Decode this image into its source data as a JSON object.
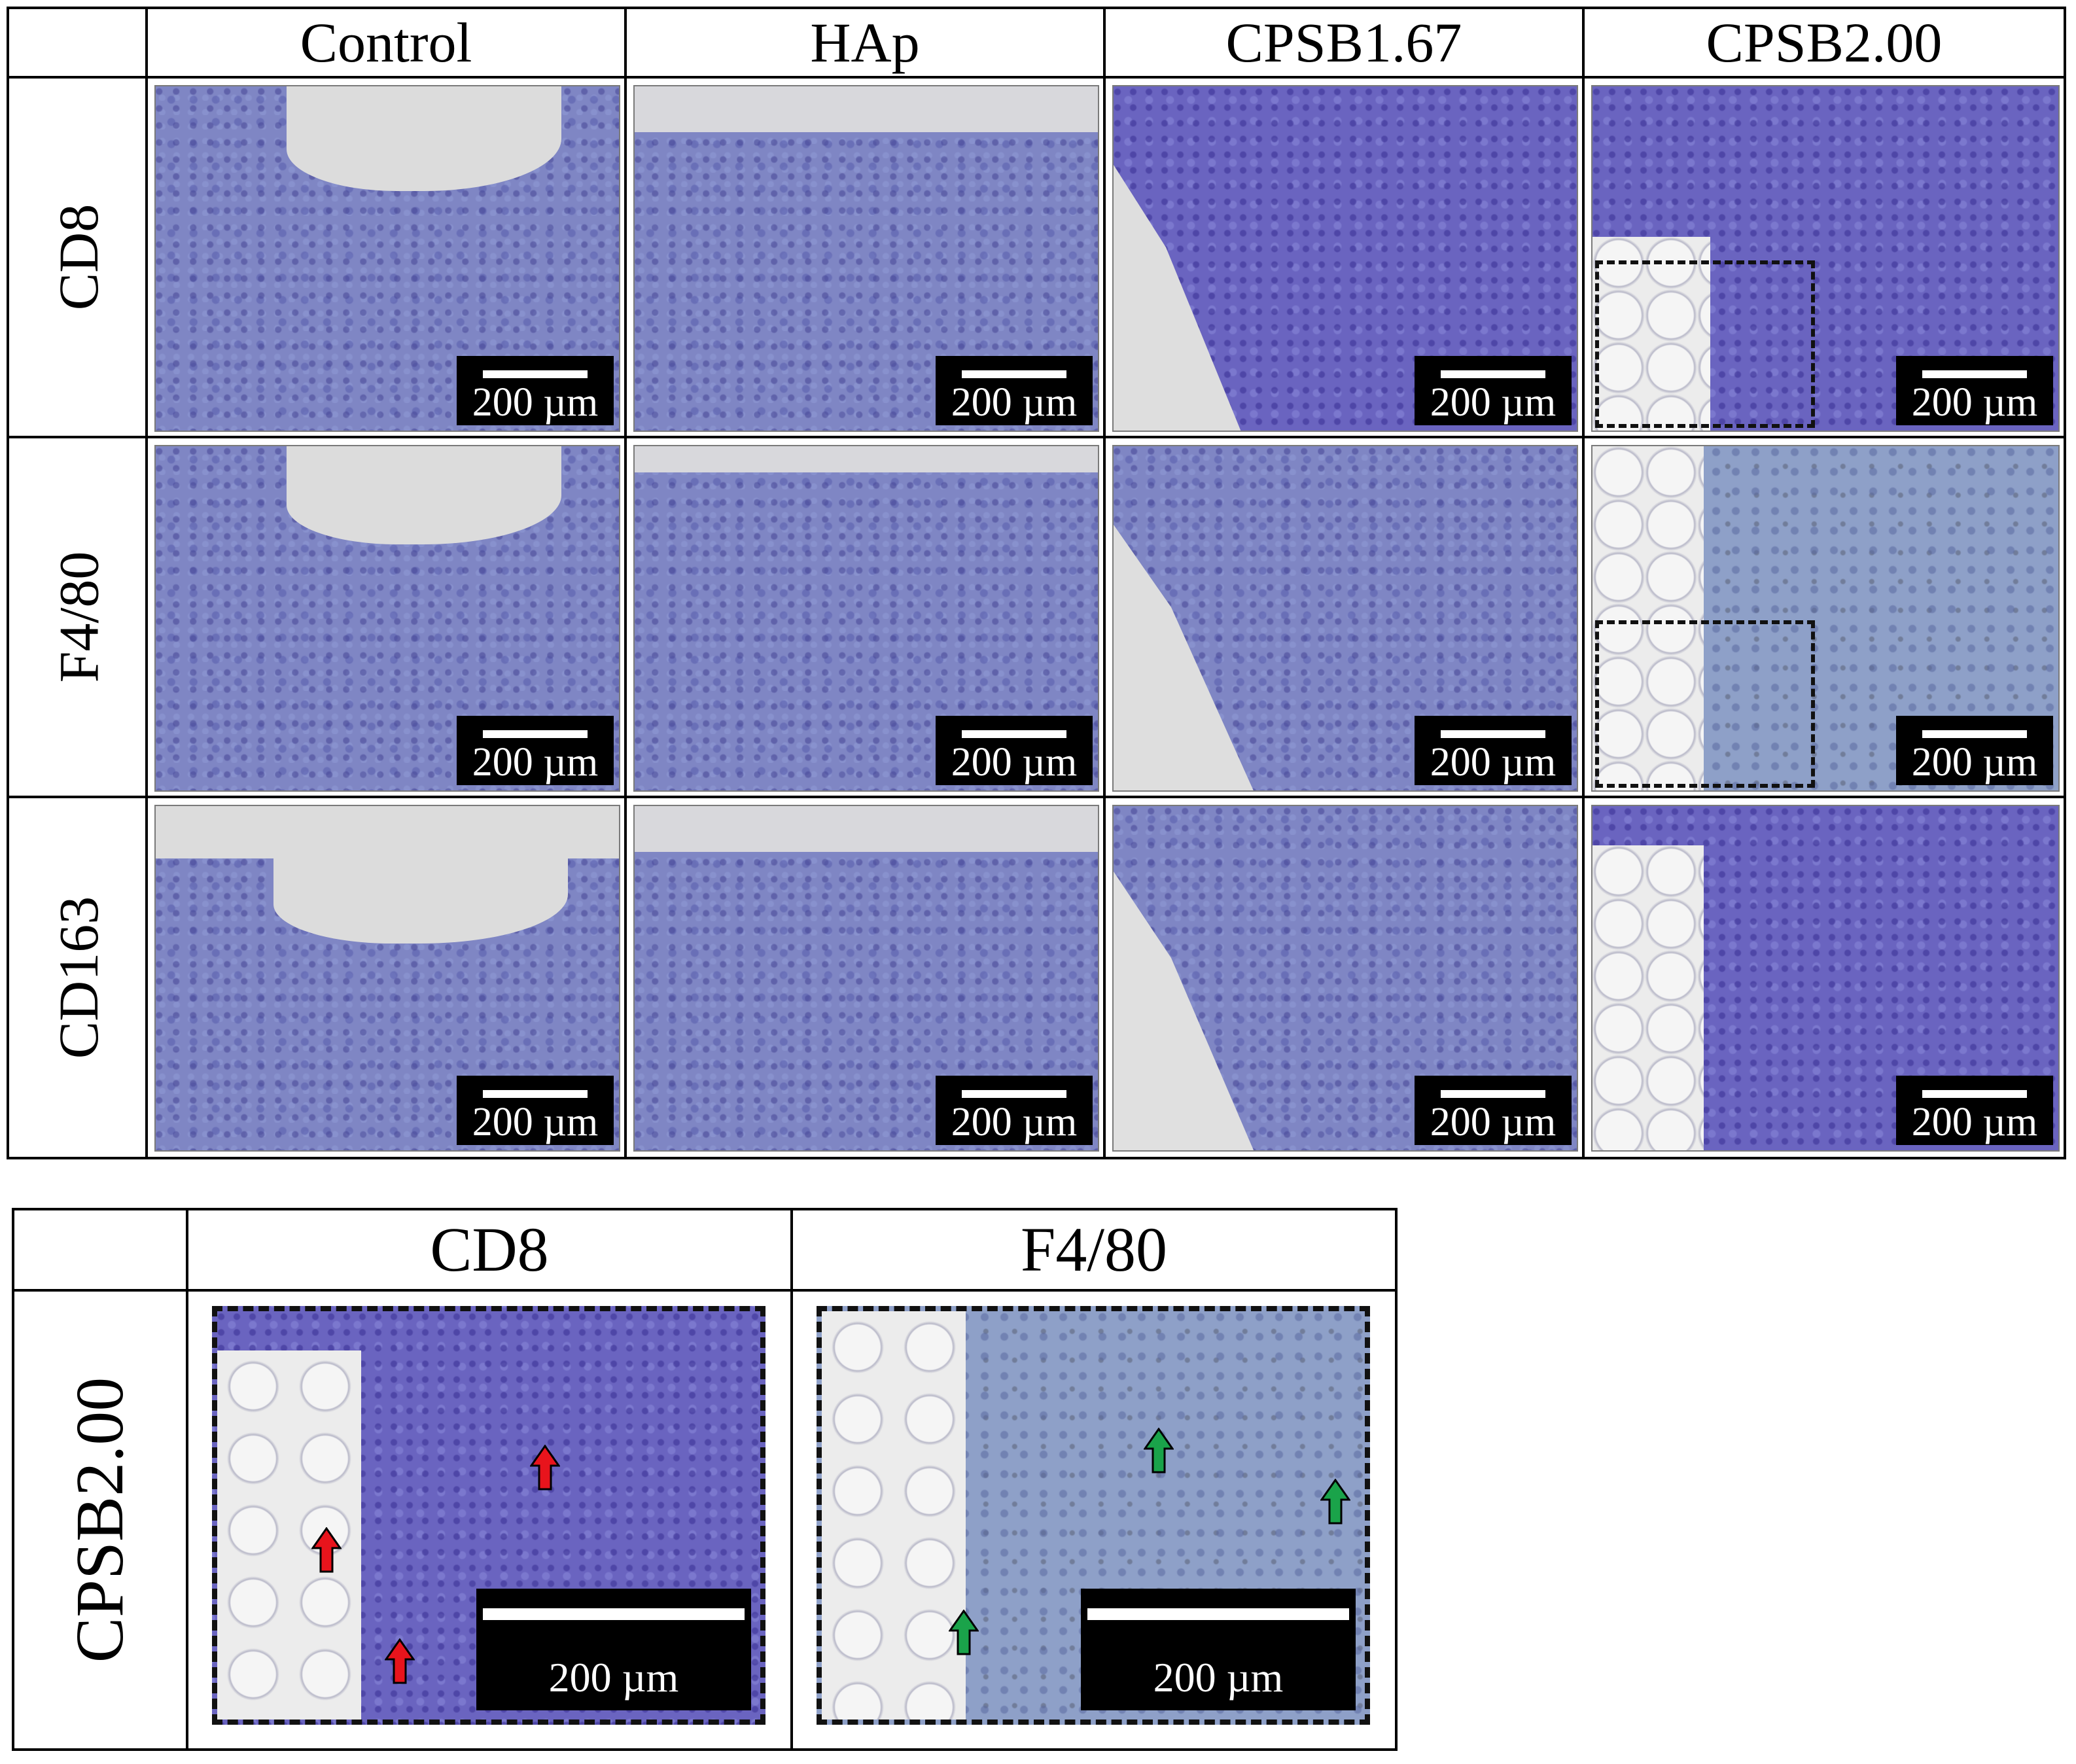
{
  "top_panel": {
    "columns": [
      "Control",
      "HAp",
      "CPSB1.67",
      "CPSB2.00"
    ],
    "rows": [
      "CD8",
      "F4/80",
      "CD163"
    ],
    "scale_bar_label": "200 µm"
  },
  "bottom_panel": {
    "columns": [
      "CD8",
      "F4/80"
    ],
    "row": "CPSB2.00",
    "scale_bar_label": "200 µm",
    "arrow_colors": {
      "CD8": "#e8141c",
      "F4/80": "#1aa34a"
    }
  },
  "colors": {
    "stain_blue": "#7f86c4",
    "dashed_border": "#111111"
  }
}
